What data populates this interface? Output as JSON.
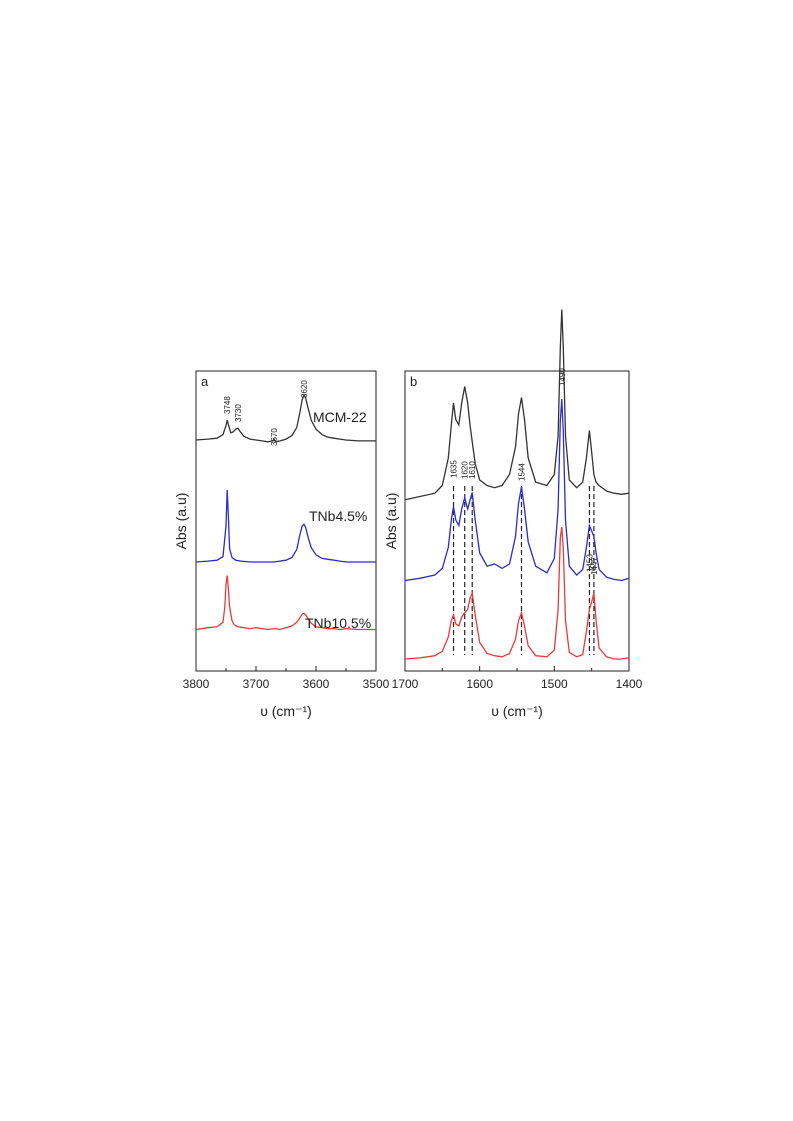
{
  "chart_data": [
    {
      "panel": "a",
      "type": "line",
      "xlabel": "υ (cm⁻¹)",
      "ylabel": "Abs (a.u)",
      "xlim": [
        3800,
        3500
      ],
      "x_reversed": true,
      "x_ticks": [
        "3800",
        "3700",
        "3600",
        "3500"
      ],
      "y_ticks": [],
      "grid": false,
      "series": [
        {
          "name": "MCM-22",
          "color": "#333333",
          "x": [
            3800,
            3780,
            3765,
            3755,
            3750,
            3748,
            3746,
            3742,
            3738,
            3734,
            3730,
            3726,
            3720,
            3710,
            3700,
            3690,
            3680,
            3672,
            3670,
            3667,
            3660,
            3650,
            3640,
            3632,
            3627,
            3623,
            3620,
            3617,
            3613,
            3608,
            3600,
            3590,
            3580,
            3570,
            3560,
            3550,
            3530,
            3500
          ],
          "y": [
            0.2,
            0.21,
            0.22,
            0.26,
            0.36,
            0.42,
            0.37,
            0.28,
            0.29,
            0.32,
            0.33,
            0.29,
            0.24,
            0.21,
            0.2,
            0.19,
            0.18,
            0.19,
            0.21,
            0.18,
            0.19,
            0.21,
            0.25,
            0.34,
            0.5,
            0.65,
            0.7,
            0.66,
            0.55,
            0.42,
            0.32,
            0.26,
            0.23,
            0.22,
            0.21,
            0.2,
            0.19,
            0.19
          ]
        },
        {
          "name": "TNb4.5%",
          "color": "#2b2bd0",
          "x": [
            3800,
            3780,
            3765,
            3755,
            3750,
            3748,
            3746,
            3744,
            3740,
            3734,
            3725,
            3710,
            3690,
            3670,
            3650,
            3640,
            3632,
            3627,
            3623,
            3620,
            3617,
            3613,
            3608,
            3600,
            3590,
            3580,
            3570,
            3560,
            3550,
            3530,
            3500
          ],
          "y": [
            0.2,
            0.21,
            0.22,
            0.26,
            0.6,
            1.0,
            0.7,
            0.35,
            0.25,
            0.22,
            0.21,
            0.2,
            0.2,
            0.2,
            0.22,
            0.25,
            0.34,
            0.5,
            0.6,
            0.62,
            0.58,
            0.47,
            0.36,
            0.28,
            0.24,
            0.23,
            0.22,
            0.21,
            0.2,
            0.2,
            0.2
          ]
        },
        {
          "name": "TNb10.5%",
          "color": "#e83a3a",
          "x": [
            3800,
            3780,
            3765,
            3755,
            3752,
            3750,
            3748,
            3746,
            3744,
            3740,
            3736,
            3730,
            3720,
            3710,
            3700,
            3690,
            3680,
            3670,
            3660,
            3650,
            3640,
            3632,
            3627,
            3623,
            3620,
            3617,
            3613,
            3608,
            3600,
            3590,
            3580,
            3570,
            3560,
            3550,
            3530,
            3500
          ],
          "y": [
            0.25,
            0.27,
            0.28,
            0.33,
            0.5,
            0.75,
            0.85,
            0.7,
            0.5,
            0.35,
            0.3,
            0.28,
            0.27,
            0.26,
            0.27,
            0.26,
            0.25,
            0.26,
            0.25,
            0.27,
            0.29,
            0.33,
            0.38,
            0.42,
            0.43,
            0.41,
            0.37,
            0.32,
            0.28,
            0.27,
            0.26,
            0.26,
            0.25,
            0.26,
            0.25,
            0.25
          ]
        }
      ],
      "annotations": [
        {
          "label": "3748",
          "x": 3748
        },
        {
          "label": "3730",
          "x": 3730
        },
        {
          "label": "3670",
          "x": 3670
        },
        {
          "label": "3620",
          "x": 3620
        }
      ]
    },
    {
      "panel": "b",
      "type": "line",
      "xlabel": "υ (cm⁻¹)",
      "ylabel": "Abs (a.u)",
      "xlim": [
        1700,
        1400
      ],
      "x_reversed": true,
      "x_ticks": [
        "1700",
        "1600",
        "1500",
        "1400"
      ],
      "y_ticks": [],
      "grid": false,
      "series": [
        {
          "name": "",
          "color": "#333333",
          "x": [
            1700,
            1680,
            1660,
            1650,
            1642,
            1638,
            1635,
            1632,
            1628,
            1624,
            1620,
            1616,
            1613,
            1610,
            1606,
            1600,
            1590,
            1580,
            1570,
            1560,
            1552,
            1548,
            1544,
            1540,
            1535,
            1525,
            1510,
            1500,
            1495,
            1492,
            1490,
            1488,
            1485,
            1480,
            1470,
            1462,
            1457,
            1453,
            1450,
            1447,
            1444,
            1440,
            1430,
            1420,
            1410,
            1400
          ],
          "y": [
            0.82,
            0.85,
            0.88,
            0.95,
            1.2,
            1.5,
            1.7,
            1.55,
            1.5,
            1.7,
            1.85,
            1.7,
            1.5,
            1.35,
            1.15,
            1.0,
            0.95,
            0.93,
            0.95,
            1.05,
            1.3,
            1.6,
            1.75,
            1.55,
            1.2,
            0.98,
            0.95,
            1.05,
            1.4,
            2.2,
            2.55,
            2.2,
            1.4,
            1.0,
            0.93,
            0.98,
            1.2,
            1.45,
            1.25,
            1.05,
            0.98,
            0.95,
            0.9,
            0.88,
            0.87,
            0.88
          ]
        },
        {
          "name": "",
          "color": "#2b2bd0",
          "x": [
            1700,
            1680,
            1660,
            1650,
            1642,
            1638,
            1635,
            1632,
            1628,
            1624,
            1620,
            1616,
            1613,
            1610,
            1606,
            1600,
            1590,
            1580,
            1570,
            1560,
            1552,
            1548,
            1544,
            1540,
            1535,
            1525,
            1510,
            1500,
            1495,
            1492,
            1490,
            1488,
            1485,
            1480,
            1470,
            1462,
            1457,
            1453,
            1450,
            1447,
            1444,
            1440,
            1430,
            1420,
            1410,
            1400
          ],
          "y": [
            0.45,
            0.47,
            0.5,
            0.56,
            0.75,
            1.0,
            1.12,
            1.0,
            0.95,
            1.1,
            1.2,
            1.1,
            1.18,
            1.25,
            1.0,
            0.7,
            0.58,
            0.6,
            0.56,
            0.6,
            0.85,
            1.15,
            1.3,
            1.1,
            0.8,
            0.58,
            0.52,
            0.65,
            1.1,
            1.9,
            2.1,
            1.8,
            1.0,
            0.58,
            0.5,
            0.55,
            0.75,
            0.95,
            0.9,
            0.85,
            0.7,
            0.55,
            0.48,
            0.46,
            0.45,
            0.47
          ]
        },
        {
          "name": "",
          "color": "#e83a3a",
          "x": [
            1700,
            1680,
            1660,
            1650,
            1642,
            1638,
            1635,
            1632,
            1628,
            1624,
            1620,
            1616,
            1613,
            1610,
            1606,
            1600,
            1590,
            1580,
            1570,
            1560,
            1552,
            1548,
            1544,
            1540,
            1535,
            1525,
            1510,
            1500,
            1495,
            1492,
            1490,
            1488,
            1485,
            1480,
            1470,
            1462,
            1457,
            1453,
            1450,
            1447,
            1444,
            1440,
            1430,
            1420,
            1410,
            1400
          ],
          "y": [
            0.1,
            0.11,
            0.13,
            0.17,
            0.3,
            0.45,
            0.5,
            0.42,
            0.4,
            0.48,
            0.52,
            0.55,
            0.65,
            0.7,
            0.5,
            0.25,
            0.15,
            0.13,
            0.12,
            0.15,
            0.28,
            0.45,
            0.52,
            0.4,
            0.22,
            0.13,
            0.12,
            0.18,
            0.55,
            1.2,
            1.3,
            1.1,
            0.45,
            0.16,
            0.12,
            0.14,
            0.35,
            0.55,
            0.62,
            0.7,
            0.45,
            0.2,
            0.12,
            0.1,
            0.1,
            0.11
          ]
        }
      ],
      "annotations": [
        {
          "label": "1635",
          "x": 1635
        },
        {
          "label": "1620",
          "x": 1620
        },
        {
          "label": "1610",
          "x": 1610
        },
        {
          "label": "1544",
          "x": 1544
        },
        {
          "label": "1490",
          "x": 1490
        },
        {
          "label": "1453",
          "x": 1453
        },
        {
          "label": "1447",
          "x": 1447
        }
      ]
    }
  ]
}
